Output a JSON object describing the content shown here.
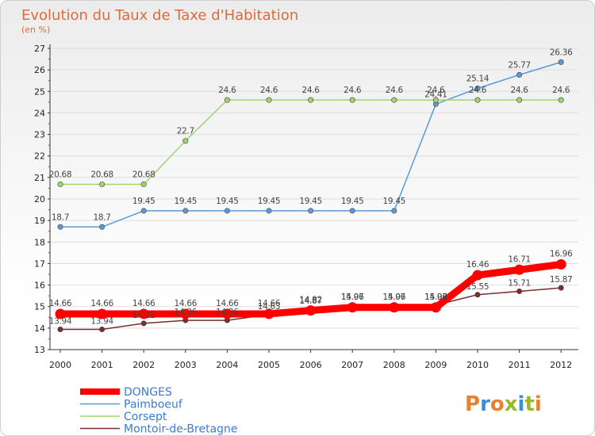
{
  "title": "Evolution du Taux de Taxe d'Habitation",
  "subtitle": "(en %)",
  "logo": "Proxiti",
  "colors": {
    "title": "#e06a3a",
    "legend_text": "#3a7bd5",
    "grid": "#dddddd",
    "axis": "#333333",
    "logo_letters": [
      "#e8812f",
      "#3a8fd5",
      "#e8812f",
      "#9ab82b",
      "#3a8fd5",
      "#9ab82b",
      "#e8812f"
    ]
  },
  "chart_data": {
    "type": "line",
    "title": "Evolution du Taux de Taxe d'Habitation",
    "subtitle": "(en %)",
    "xlabel": "",
    "ylabel": "",
    "x": [
      "2000",
      "2001",
      "2002",
      "2003",
      "2004",
      "2005",
      "2006",
      "2007",
      "2008",
      "2009",
      "2010",
      "2011",
      "2012"
    ],
    "yticks": [
      "13",
      "14",
      "15",
      "16",
      "17",
      "18",
      "19",
      "20",
      "21",
      "22",
      "23",
      "24",
      "25",
      "26",
      "27"
    ],
    "ylim": [
      13,
      27
    ],
    "grid": "horizontal",
    "legend_position": "bottom-left",
    "series": [
      {
        "name": "DONGES",
        "color": "#ff0000",
        "values": [
          14.66,
          14.66,
          14.66,
          14.66,
          14.66,
          14.66,
          14.82,
          14.96,
          14.96,
          14.96,
          16.46,
          16.71,
          16.96
        ],
        "labels": [
          "14.66",
          "14.66",
          "14.66",
          "14.66",
          "14.66",
          "14.66",
          "14.82",
          "14.96",
          "14.96",
          "14.96",
          "16.46",
          "16.71",
          "16.96"
        ]
      },
      {
        "name": "Paimboeuf",
        "color": "#5b9bd5",
        "values": [
          18.7,
          18.7,
          19.45,
          19.45,
          19.45,
          19.45,
          19.45,
          19.45,
          19.45,
          24.41,
          25.14,
          25.77,
          26.36
        ],
        "labels": [
          "18.7",
          "18.7",
          "19.45",
          "19.45",
          "19.45",
          "19.45",
          "19.45",
          "19.45",
          "19.45",
          "24.41",
          "25.14",
          "25.77",
          "26.36"
        ]
      },
      {
        "name": "Corsept",
        "color": "#9fd66b",
        "values": [
          20.68,
          20.68,
          20.68,
          22.7,
          24.6,
          24.6,
          24.6,
          24.6,
          24.6,
          24.6,
          24.6,
          24.6,
          24.6
        ],
        "labels": [
          "20.68",
          "20.68",
          "20.68",
          "22.7",
          "24.6",
          "24.6",
          "24.6",
          "24.6",
          "24.6",
          "24.6",
          "24.6",
          "24.6",
          "24.6"
        ]
      },
      {
        "name": "Montoir-de-Bretagne",
        "color": "#7a2e2e",
        "values": [
          13.94,
          13.94,
          14.22,
          14.36,
          14.36,
          14.63,
          14.87,
          15.07,
          15.07,
          15.07,
          15.55,
          15.71,
          15.87
        ],
        "labels": [
          "13.94",
          "13.94",
          "14.22",
          "14.36",
          "14.36",
          "14.63",
          "14.87",
          "15.07",
          "15.07",
          "15.07",
          "15.55",
          "15.71",
          "15.87"
        ]
      }
    ]
  }
}
